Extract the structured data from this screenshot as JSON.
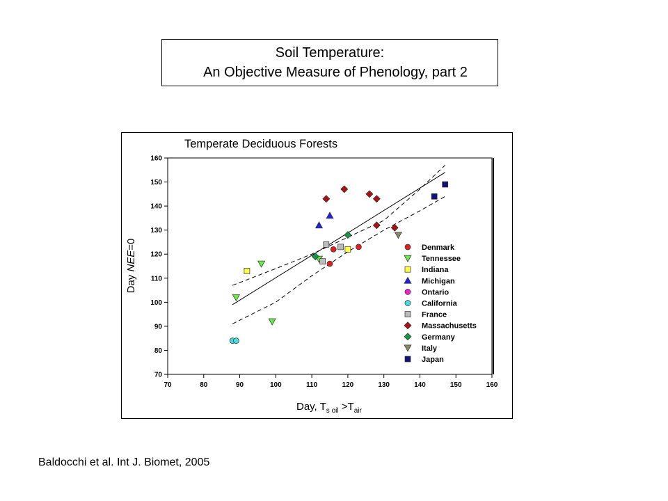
{
  "slide": {
    "title_line1": "Soil Temperature:",
    "title_line2": "An Objective Measure of Phenology, part 2",
    "citation": "Baldocchi et al. Int J. Biomet, 2005"
  },
  "chart_data": {
    "type": "scatter",
    "title": "Temperate Deciduous Forests",
    "xlabel": "Day, T",
    "xlabel_sub1": "s oil",
    "xlabel_mid": " >T",
    "xlabel_sub2": "air",
    "ylabel_prefix": "Day ",
    "ylabel_italic": "NEE",
    "ylabel_suffix": "=0",
    "xlim": [
      70,
      160
    ],
    "ylim": [
      70,
      160
    ],
    "xticks": [
      70,
      80,
      90,
      100,
      110,
      120,
      130,
      140,
      150,
      160
    ],
    "yticks": [
      70,
      80,
      90,
      100,
      110,
      120,
      130,
      140,
      150,
      160
    ],
    "grid": false,
    "legend_position": "right",
    "series": [
      {
        "name": "Denmark",
        "marker": "circle",
        "color": "#e02020",
        "points": [
          [
            115,
            116
          ],
          [
            116,
            122
          ],
          [
            123,
            123
          ]
        ]
      },
      {
        "name": "Tennessee",
        "marker": "triangle-down",
        "color": "#66ee44",
        "points": [
          [
            89,
            102
          ],
          [
            96,
            116
          ],
          [
            99,
            92
          ],
          [
            112,
            118
          ]
        ]
      },
      {
        "name": "Indiana",
        "marker": "square",
        "color": "#ffff44",
        "points": [
          [
            92,
            113
          ],
          [
            120,
            122
          ]
        ]
      },
      {
        "name": "Michigan",
        "marker": "triangle-up",
        "color": "#2222dd",
        "points": [
          [
            112,
            132
          ],
          [
            115,
            136
          ]
        ]
      },
      {
        "name": "Ontario",
        "marker": "circle",
        "color": "#ee22cc",
        "points": []
      },
      {
        "name": "California",
        "marker": "circle",
        "color": "#44dddd",
        "points": [
          [
            88,
            84
          ],
          [
            89,
            84
          ]
        ]
      },
      {
        "name": "France",
        "marker": "square",
        "color": "#bbbbbb",
        "points": [
          [
            113,
            117
          ],
          [
            114,
            124
          ],
          [
            118,
            123
          ]
        ]
      },
      {
        "name": "Massachusetts",
        "marker": "diamond",
        "color": "#aa1111",
        "points": [
          [
            114,
            143
          ],
          [
            119,
            147
          ],
          [
            126,
            145
          ],
          [
            128,
            143
          ],
          [
            128,
            132
          ],
          [
            133,
            131
          ]
        ]
      },
      {
        "name": "Germany",
        "marker": "diamond",
        "color": "#119944",
        "points": [
          [
            111,
            119
          ],
          [
            120,
            128
          ]
        ]
      },
      {
        "name": "Italy",
        "marker": "triangle-down",
        "color": "#888866",
        "points": [
          [
            134,
            128
          ]
        ]
      },
      {
        "name": "Japan",
        "marker": "square",
        "color": "#111177",
        "points": [
          [
            144,
            144
          ],
          [
            147,
            149
          ]
        ]
      }
    ],
    "fit_line": [
      [
        88,
        99
      ],
      [
        147,
        154
      ]
    ],
    "confidence_upper": [
      [
        88,
        107
      ],
      [
        100,
        114
      ],
      [
        110,
        120
      ],
      [
        120,
        127
      ],
      [
        130,
        134
      ],
      [
        140,
        147
      ],
      [
        147,
        157
      ]
    ],
    "confidence_lower": [
      [
        88,
        91
      ],
      [
        100,
        100
      ],
      [
        110,
        111
      ],
      [
        120,
        121
      ],
      [
        130,
        130
      ],
      [
        140,
        138
      ],
      [
        147,
        144
      ]
    ]
  }
}
